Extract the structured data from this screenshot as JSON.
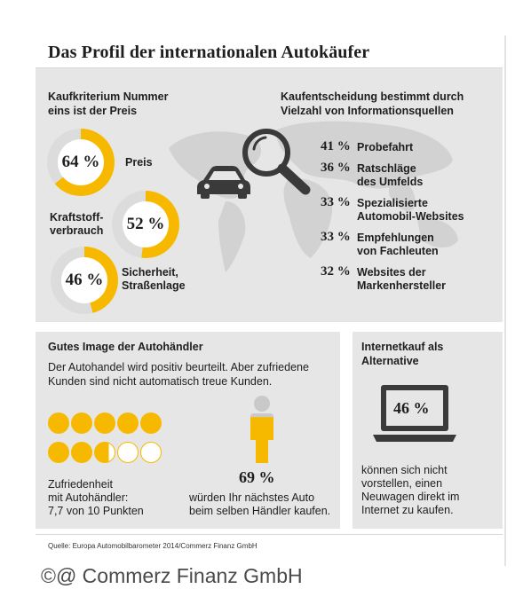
{
  "title": "Das Profil der internationalen Autokäufer",
  "kriterium": {
    "heading_line1": "Kaufkriterium Nummer",
    "heading_line2": "eins ist der Preis",
    "items": [
      {
        "value": "64 %",
        "fraction": 0.64,
        "label_line1": "Preis",
        "label_line2": ""
      },
      {
        "value": "52 %",
        "fraction": 0.52,
        "label_line1": "Kraftstoff-",
        "label_line2": "verbrauch"
      },
      {
        "value": "46 %",
        "fraction": 0.46,
        "label_line1": "Sicherheit,",
        "label_line2": "Straßenlage"
      }
    ]
  },
  "quellen": {
    "heading_line1": "Kaufentscheidung bestimmt durch",
    "heading_line2": "Vielzahl von Informationsquellen",
    "items": [
      {
        "value": "41 %",
        "label_line1": "Probefahrt",
        "label_line2": ""
      },
      {
        "value": "36 %",
        "label_line1": "Ratschläge",
        "label_line2": "des Umfelds"
      },
      {
        "value": "33 %",
        "label_line1": "Spezialisierte",
        "label_line2": "Automobil-Websites"
      },
      {
        "value": "33 %",
        "label_line1": "Empfehlungen",
        "label_line2": "von Fachleuten"
      },
      {
        "value": "32 %",
        "label_line1": "Websites der",
        "label_line2": "Markenhersteller"
      }
    ]
  },
  "image": {
    "heading": "Gutes Image der Autohändler",
    "body_line1": "Der Autohandel wird positiv beurteilt. Aber zufriedene",
    "body_line2": "Kunden sind nicht automatisch treue Kunden.",
    "rating": {
      "score": 7.7,
      "max": 10
    },
    "rating_line1": "Zufriedenheit",
    "rating_line2": "mit Autohändler:",
    "rating_line3": "7,7 von 10 Punkten",
    "loyal_fraction": 0.69,
    "loyal_value": "69 %",
    "loyal_line1": "würden Ihr nächstes Auto",
    "loyal_line2": "beim selben Händler kaufen."
  },
  "internet": {
    "heading_line1": "Internetkauf als",
    "heading_line2": "Alternative",
    "value": "46 %",
    "text_line1": "können sich nicht",
    "text_line2": "vorstellen, einen",
    "text_line3": "Neuwagen direkt im",
    "text_line4": "Internet zu kaufen."
  },
  "source": "Quelle: Europa Automobilbarometer 2014/Commerz Finanz GmbH",
  "watermark": "©@ Commerz Finanz GmbH",
  "colors": {
    "accent": "#f7b900",
    "panel": "#e6e6e6",
    "map": "#d2d2d2",
    "dark": "#3a3a3a"
  },
  "icons": [
    "car-icon",
    "magnifier-icon",
    "person-icon",
    "laptop-icon",
    "world-map"
  ]
}
